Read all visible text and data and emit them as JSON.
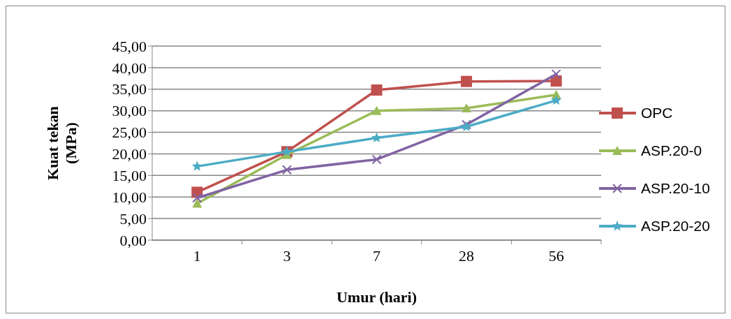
{
  "chart_data": {
    "type": "line",
    "xlabel": "Umur (hari)",
    "ylabel": "Kuat tekan (MPa)",
    "categories": [
      "1",
      "3",
      "7",
      "28",
      "56"
    ],
    "series": [
      {
        "name": "OPC",
        "color": "#c0504d",
        "marker": "square",
        "values": [
          11.1,
          20.5,
          34.8,
          36.8,
          36.9
        ]
      },
      {
        "name": "ASP.20-0",
        "color": "#9bbb59",
        "marker": "triangle",
        "values": [
          8.5,
          19.8,
          30.0,
          30.6,
          33.7
        ]
      },
      {
        "name": "ASP.20-10",
        "color": "#8064a2",
        "marker": "cross",
        "values": [
          9.8,
          16.3,
          18.7,
          26.8,
          38.5
        ]
      },
      {
        "name": "ASP.20-20",
        "color": "#4bacc6",
        "marker": "star",
        "values": [
          17.1,
          20.5,
          23.7,
          26.3,
          32.4
        ]
      }
    ],
    "ylim": [
      0,
      45
    ],
    "yticks": [
      {
        "value": 0,
        "label": "0,00"
      },
      {
        "value": 5,
        "label": "5,00"
      },
      {
        "value": 10,
        "label": "10,00"
      },
      {
        "value": 15,
        "label": "15,00"
      },
      {
        "value": 20,
        "label": "20,00"
      },
      {
        "value": 25,
        "label": "25,00"
      },
      {
        "value": 30,
        "label": "30,00"
      },
      {
        "value": 35,
        "label": "35,00"
      },
      {
        "value": 40,
        "label": "40,00"
      },
      {
        "value": 45,
        "label": "45,00"
      }
    ],
    "grid": "y",
    "legend": "right"
  }
}
